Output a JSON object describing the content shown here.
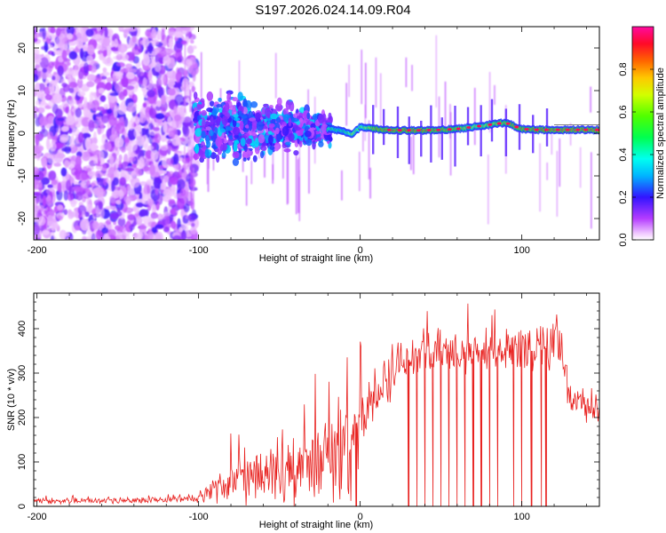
{
  "title": "S197.2026.024.14.09.R04",
  "colors": {
    "snr_line": "#e8201e",
    "ridge_low": "#1a9cf0",
    "ridge_high": "#ff1e3c",
    "scatter_core": "#6a0cf0",
    "scatter_halo": "#b49cf0"
  },
  "chart_data": [
    {
      "type": "heatmap",
      "name": "spectrogram",
      "xlabel": "Height of straight line (km)",
      "ylabel": "Frequency (Hz)",
      "xlim": [
        -202,
        148
      ],
      "ylim": [
        -25,
        25
      ],
      "xticks": [
        -200,
        -100,
        0,
        100
      ],
      "xtick_labels": [
        "-200",
        "-100",
        "0",
        "100"
      ],
      "yticks": [
        -20,
        -10,
        0,
        10,
        20
      ],
      "ytick_labels": [
        "-20",
        "-10",
        "0",
        "10",
        "20"
      ],
      "colorbar": {
        "label": "Normalized spectral amplitude",
        "range": [
          0.0,
          1.0
        ],
        "ticks": [
          0.0,
          0.2,
          0.4,
          0.6,
          0.8
        ],
        "tick_labels": [
          "0.0",
          "0.2",
          "0.4",
          "0.6",
          "0.8"
        ],
        "colormap": "hsv (magenta-blue-cyan-green-yellow-red)"
      },
      "ridge": {
        "description": "strong narrow spectral line near 0-2 Hz above about -20 km",
        "x": [
          -20,
          -10,
          -5,
          0,
          10,
          20,
          30,
          40,
          50,
          60,
          70,
          80,
          90,
          100,
          110,
          120,
          148
        ],
        "y": [
          1.0,
          0.5,
          -0.3,
          1.5,
          1.0,
          0.7,
          0.7,
          0.7,
          0.8,
          1.0,
          1.5,
          2.0,
          2.5,
          1.0,
          0.8,
          0.8,
          0.8
        ],
        "amplitude": [
          0.55,
          0.5,
          0.7,
          0.6,
          0.85,
          0.9,
          0.9,
          0.9,
          0.85,
          0.8,
          0.7,
          0.75,
          0.8,
          0.85,
          0.9,
          0.95,
          0.95
        ]
      },
      "regions": [
        {
          "x_range": [
            -202,
            -100
          ],
          "freq_range": [
            -25,
            25
          ],
          "amplitude": "0.0-0.1",
          "character": "broadband noise"
        },
        {
          "x_range": [
            -100,
            -20
          ],
          "freq_range": [
            -5,
            7
          ],
          "amplitude": "0.1-0.35",
          "character": "scattered signal"
        },
        {
          "x_range": [
            -20,
            148
          ],
          "freq_range": [
            0,
            2.5
          ],
          "amplitude": "0.5-1.0",
          "character": "coherent carrier line"
        }
      ]
    },
    {
      "type": "line",
      "name": "snr",
      "xlabel": "Height of straight line (km)",
      "ylabel": "SNR (10 * v/v)",
      "xlim": [
        -202,
        148
      ],
      "ylim": [
        0,
        480
      ],
      "xticks": [
        -200,
        -100,
        0,
        100
      ],
      "xtick_labels": [
        "-200",
        "-100",
        "0",
        "100"
      ],
      "yticks": [
        0,
        100,
        200,
        300,
        400
      ],
      "ytick_labels": [
        "0",
        "100",
        "200",
        "300",
        "400"
      ],
      "envelope": {
        "x": [
          -202,
          -150,
          -110,
          -100,
          -90,
          -80,
          -70,
          -60,
          -50,
          -40,
          -30,
          -20,
          -12,
          -8,
          -5,
          0,
          10,
          20,
          30,
          40,
          50,
          60,
          70,
          80,
          90,
          100,
          110,
          118,
          122,
          125,
          130,
          140,
          148
        ],
        "mean": [
          12,
          13,
          15,
          20,
          40,
          55,
          70,
          75,
          80,
          90,
          95,
          110,
          130,
          160,
          175,
          200,
          260,
          300,
          330,
          345,
          350,
          345,
          350,
          352,
          350,
          350,
          350,
          360,
          360,
          340,
          240,
          220,
          215
        ],
        "spread": [
          8,
          8,
          8,
          12,
          30,
          45,
          55,
          60,
          70,
          75,
          80,
          100,
          120,
          80,
          60,
          60,
          60,
          70,
          70,
          70,
          60,
          60,
          60,
          60,
          60,
          60,
          70,
          80,
          80,
          60,
          40,
          40,
          40
        ],
        "peaks": [
          25,
          25,
          28,
          45,
          90,
          180,
          190,
          160,
          175,
          230,
          300,
          350,
          360,
          360,
          380,
          400,
          420,
          450,
          470,
          470,
          460,
          460,
          460,
          460,
          460,
          460,
          440,
          470,
          470,
          440,
          290,
          280,
          270
        ]
      },
      "zero_drops": [
        30,
        35,
        40,
        45,
        50,
        55,
        60,
        65,
        70,
        75,
        80,
        85,
        95,
        100,
        106,
        112,
        115
      ]
    }
  ]
}
